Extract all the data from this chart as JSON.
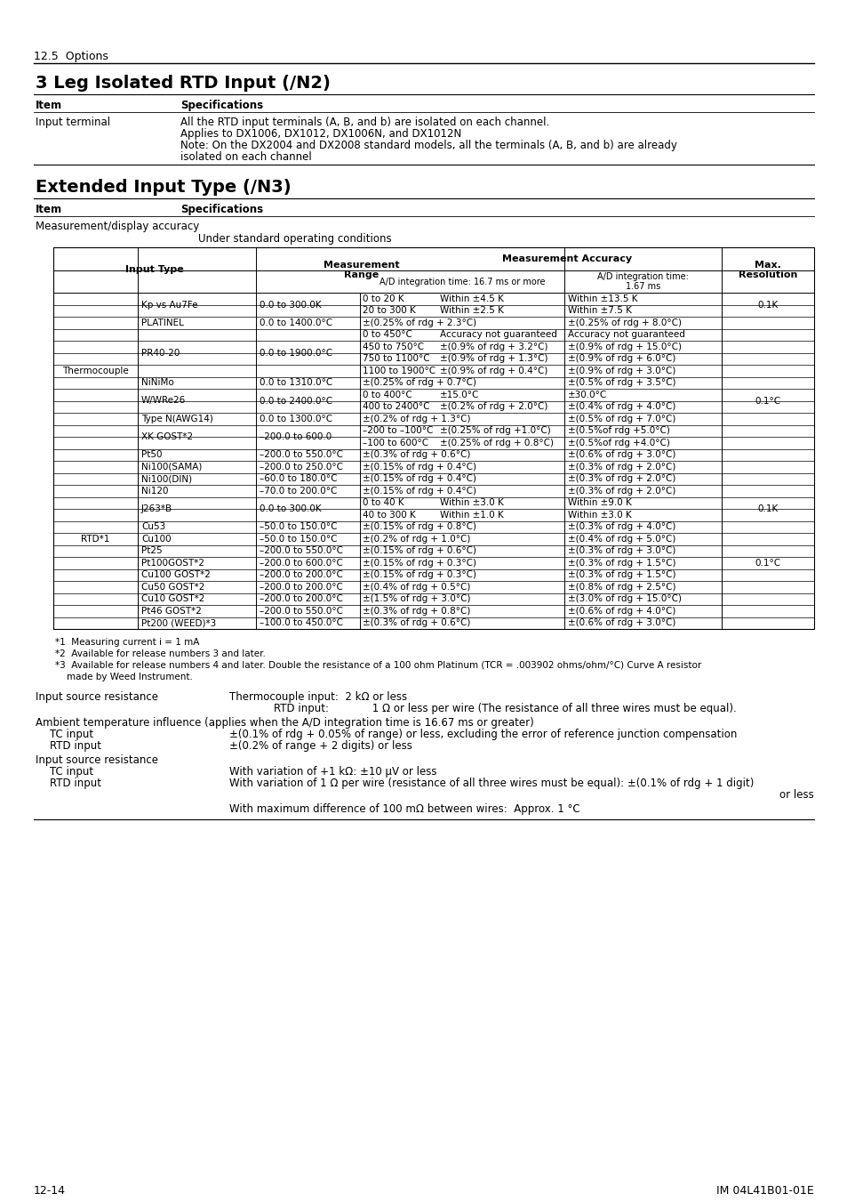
{
  "page_bg": "#ffffff",
  "header_section": "12.5  Options",
  "section1_title": "3 Leg Isolated RTD Input (/N2)",
  "section2_title": "Extended Input Type (/N3)",
  "meas_display": "Measurement/display accuracy",
  "under_std": "Under standard operating conditions",
  "table_rows": [
    {
      "group": "Thermocouple",
      "type": "Kp vs Au7Fe",
      "range": "0.0 to 300.0K",
      "sub": [
        [
          "0 to 20 K",
          "Within ±4.5 K",
          "Within ±13.5 K"
        ],
        [
          "20 to 300 K",
          "Within ±2.5 K",
          "Within ±7.5 K"
        ]
      ],
      "resolution": "0.1K"
    },
    {
      "group": "",
      "type": "PLATINEL",
      "range": "0.0 to 1400.0°C",
      "sub": [
        [
          "",
          "±(0.25% of rdg + 2.3°C)",
          "±(0.25% of rdg + 8.0°C)"
        ]
      ],
      "resolution": ""
    },
    {
      "group": "",
      "type": "PR40-20",
      "range": "0.0 to 1900.0°C",
      "sub": [
        [
          "0 to 450°C",
          "Accuracy not guaranteed",
          "Accuracy not guaranteed"
        ],
        [
          "450 to 750°C",
          "±(0.9% of rdg + 3.2°C)",
          "±(0.9% of rdg + 15.0°C)"
        ],
        [
          "750 to 1100°C",
          "±(0.9% of rdg + 1.3°C)",
          "±(0.9% of rdg + 6.0°C)"
        ],
        [
          "1100 to 1900°C",
          "±(0.9% of rdg + 0.4°C)",
          "±(0.9% of rdg + 3.0°C)"
        ]
      ],
      "resolution": ""
    },
    {
      "group": "",
      "type": "NiNiMo",
      "range": "0.0 to 1310.0°C",
      "sub": [
        [
          "",
          "±(0.25% of rdg + 0.7°C)",
          "±(0.5% of rdg + 3.5°C)"
        ]
      ],
      "resolution": ""
    },
    {
      "group": "",
      "type": "W/WRe26",
      "range": "0.0 to 2400.0°C",
      "sub": [
        [
          "0 to 400°C",
          "±15.0°C",
          "±30.0°C"
        ],
        [
          "400 to 2400°C",
          "±(0.2% of rdg + 2.0°C)",
          "±(0.4% of rdg + 4.0°C)"
        ]
      ],
      "resolution": "0.1°C"
    },
    {
      "group": "",
      "type": "Type N(AWG14)",
      "range": "0.0 to 1300.0°C",
      "sub": [
        [
          "",
          "±(0.2% of rdg + 1.3°C)",
          "±(0.5% of rdg + 7.0°C)"
        ]
      ],
      "resolution": ""
    },
    {
      "group": "",
      "type": "XK GOST*2",
      "range": "–200.0 to 600.0",
      "sub": [
        [
          "–200 to –100°C",
          "±(0.25% of rdg +1.0°C)",
          "±(0.5%of rdg +5.0°C)"
        ],
        [
          "–100 to 600°C",
          "±(0.25% of rdg + 0.8°C)",
          "±(0.5%of rdg +4.0°C)"
        ]
      ],
      "resolution": ""
    },
    {
      "group": "RTD*1",
      "type": "Pt50",
      "range": "–200.0 to 550.0°C",
      "sub": [
        [
          "",
          "±(0.3% of rdg + 0.6°C)",
          "±(0.6% of rdg + 3.0°C)"
        ]
      ],
      "resolution": ""
    },
    {
      "group": "",
      "type": "Ni100(SAMA)",
      "range": "–200.0 to 250.0°C",
      "sub": [
        [
          "",
          "±(0.15% of rdg + 0.4°C)",
          "±(0.3% of rdg + 2.0°C)"
        ]
      ],
      "resolution": ""
    },
    {
      "group": "",
      "type": "Ni100(DIN)",
      "range": "–60.0 to 180.0°C",
      "sub": [
        [
          "",
          "±(0.15% of rdg + 0.4°C)",
          "±(0.3% of rdg + 2.0°C)"
        ]
      ],
      "resolution": ""
    },
    {
      "group": "",
      "type": "Ni120",
      "range": "–70.0 to 200.0°C",
      "sub": [
        [
          "",
          "±(0.15% of rdg + 0.4°C)",
          "±(0.3% of rdg + 2.0°C)"
        ]
      ],
      "resolution": ""
    },
    {
      "group": "",
      "type": "J263*B",
      "range": "0.0 to 300.0K",
      "sub": [
        [
          "0 to 40 K",
          "Within ±3.0 K",
          "Within ±9.0 K"
        ],
        [
          "40 to 300 K",
          "Within ±1.0 K",
          "Within ±3.0 K"
        ]
      ],
      "resolution": "0.1K"
    },
    {
      "group": "",
      "type": "Cu53",
      "range": "–50.0 to 150.0°C",
      "sub": [
        [
          "",
          "±(0.15% of rdg + 0.8°C)",
          "±(0.3% of rdg + 4.0°C)"
        ]
      ],
      "resolution": ""
    },
    {
      "group": "",
      "type": "Cu100",
      "range": "–50.0 to 150.0°C",
      "sub": [
        [
          "",
          "±(0.2% of rdg + 1.0°C)",
          "±(0.4% of rdg + 5.0°C)"
        ]
      ],
      "resolution": ""
    },
    {
      "group": "",
      "type": "Pt25",
      "range": "–200.0 to 550.0°C",
      "sub": [
        [
          "",
          "±(0.15% of rdg + 0.6°C)",
          "±(0.3% of rdg + 3.0°C)"
        ]
      ],
      "resolution": ""
    },
    {
      "group": "",
      "type": "Pt100GOST*2",
      "range": "–200.0 to 600.0°C",
      "sub": [
        [
          "",
          "±(0.15% of rdg + 0.3°C)",
          "±(0.3% of rdg + 1.5°C)"
        ]
      ],
      "resolution": "0.1°C"
    },
    {
      "group": "",
      "type": "Cu100 GOST*2",
      "range": "–200.0 to 200.0°C",
      "sub": [
        [
          "",
          "±(0.15% of rdg + 0.3°C)",
          "±(0.3% of rdg + 1.5°C)"
        ]
      ],
      "resolution": ""
    },
    {
      "group": "",
      "type": "Cu50 GOST*2",
      "range": "–200.0 to 200.0°C",
      "sub": [
        [
          "",
          "±(0.4% of rdg + 0.5°C)",
          "±(0.8% of rdg + 2.5°C)"
        ]
      ],
      "resolution": ""
    },
    {
      "group": "",
      "type": "Cu10 GOST*2",
      "range": "–200.0 to 200.0°C",
      "sub": [
        [
          "",
          "±(1.5% of rdg + 3.0°C)",
          "±(3.0% of rdg + 15.0°C)"
        ]
      ],
      "resolution": ""
    },
    {
      "group": "",
      "type": "Pt46 GOST*2",
      "range": "–200.0 to 550.0°C",
      "sub": [
        [
          "",
          "±(0.3% of rdg + 0.8°C)",
          "±(0.6% of rdg + 4.0°C)"
        ]
      ],
      "resolution": ""
    },
    {
      "group": "",
      "type": "Pt200 (WEED)*3",
      "range": "–100.0 to 450.0°C",
      "sub": [
        [
          "",
          "±(0.3% of rdg + 0.6°C)",
          "±(0.6% of rdg + 3.0°C)"
        ]
      ],
      "resolution": ""
    }
  ],
  "footnotes": [
    "*1  Measuring current i = 1 mA",
    "*2  Available for release numbers 3 and later.",
    "*3  Available for release numbers 4 and later. Double the resistance of a 100 ohm Platinum (TCR = .003902 ohms/ohm/°C) Curve A resistor",
    "    made by Weed Instrument."
  ],
  "footer_left": "12-14",
  "footer_right": "IM 04L41B01-01E"
}
